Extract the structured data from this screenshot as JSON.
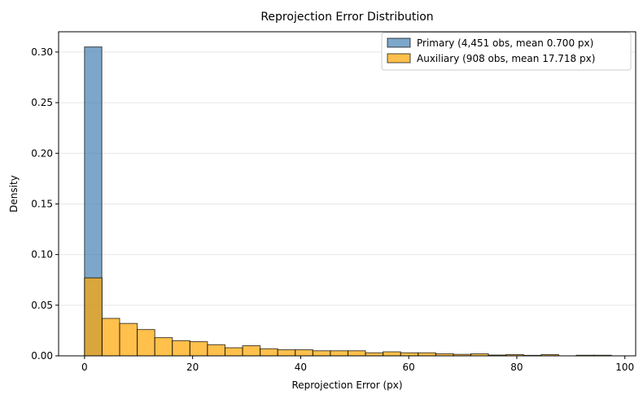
{
  "chart_data": {
    "type": "bar",
    "title": "Reprojection Error Distribution",
    "xlabel": "Reprojection Error (px)",
    "ylabel": "Density",
    "xlim": [
      -4.8,
      102
    ],
    "ylim": [
      0,
      0.32
    ],
    "xticks": [
      "0",
      "20",
      "40",
      "60",
      "80",
      "100"
    ],
    "yticks": [
      "0.00",
      "0.05",
      "0.10",
      "0.15",
      "0.20",
      "0.25",
      "0.30"
    ],
    "grid": "horizontal",
    "legend_position": "top-right",
    "series": [
      {
        "name": "Primary (4,451 obs, mean 0.700 px)",
        "color": "#4682b4",
        "bins": [
          [
            0,
            3.2,
            0.305
          ]
        ]
      },
      {
        "name": "Auxiliary (908 obs, mean 17.718 px)",
        "color": "#ffa500",
        "bins": [
          [
            0,
            3.25,
            0.077
          ],
          [
            3.25,
            6.5,
            0.037
          ],
          [
            6.5,
            9.75,
            0.032
          ],
          [
            9.75,
            13.0,
            0.026
          ],
          [
            13.0,
            16.25,
            0.018
          ],
          [
            16.25,
            19.5,
            0.015
          ],
          [
            19.5,
            22.75,
            0.014
          ],
          [
            22.75,
            26.0,
            0.011
          ],
          [
            26.0,
            29.25,
            0.008
          ],
          [
            29.25,
            32.5,
            0.01
          ],
          [
            32.5,
            35.75,
            0.007
          ],
          [
            35.75,
            39.0,
            0.006
          ],
          [
            39.0,
            42.25,
            0.006
          ],
          [
            42.25,
            45.5,
            0.005
          ],
          [
            45.5,
            48.75,
            0.005
          ],
          [
            48.75,
            52.0,
            0.005
          ],
          [
            52.0,
            55.25,
            0.003
          ],
          [
            55.25,
            58.5,
            0.004
          ],
          [
            58.5,
            61.75,
            0.003
          ],
          [
            61.75,
            65.0,
            0.003
          ],
          [
            65.0,
            68.25,
            0.002
          ],
          [
            68.25,
            71.5,
            0.0015
          ],
          [
            71.5,
            74.75,
            0.002
          ],
          [
            74.75,
            78.0,
            0.0008
          ],
          [
            78.0,
            81.25,
            0.0012
          ],
          [
            81.25,
            84.5,
            0.0005
          ],
          [
            84.5,
            87.75,
            0.0012
          ],
          [
            87.75,
            91.0,
            0.0
          ],
          [
            91.0,
            94.25,
            0.0006
          ],
          [
            94.25,
            97.5,
            0.0006
          ]
        ]
      }
    ]
  }
}
